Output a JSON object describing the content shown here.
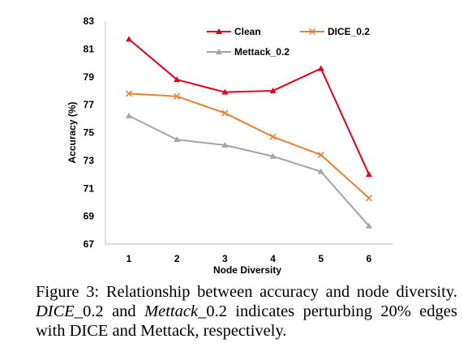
{
  "chart_data": {
    "type": "line",
    "title": "",
    "xlabel": "Node Diversity",
    "ylabel": "Accuracy (%)",
    "categories": [
      "1",
      "2",
      "3",
      "4",
      "5",
      "6"
    ],
    "ylim": [
      67,
      83
    ],
    "yticks": [
      "67",
      "69",
      "71",
      "73",
      "75",
      "77",
      "79",
      "81",
      "83"
    ],
    "grid": false,
    "legend_placement": "top-right",
    "series": [
      {
        "name": "Clean",
        "values": [
          81.7,
          78.8,
          77.9,
          78.0,
          79.6,
          72.0
        ],
        "color": "#e3001b",
        "marker": "triangle"
      },
      {
        "name": "DICE_0.2",
        "values": [
          77.8,
          77.6,
          76.4,
          74.7,
          73.4,
          70.3
        ],
        "color": "#ed7d31",
        "marker": "x"
      },
      {
        "name": "Mettack_0.2",
        "values": [
          76.2,
          74.5,
          74.1,
          73.3,
          72.2,
          68.3
        ],
        "color": "#a5a5a5",
        "marker": "triangle"
      }
    ]
  },
  "caption": {
    "prefix": "Figure 3: Relationship between accuracy and node diversity. ",
    "dice": "DICE",
    "dice_suffix": "_0.2 and ",
    "mettack": "Mettack",
    "mettack_suffix": "_0.2 indicates perturbing 20% edges with DICE and Mettack, respectively."
  }
}
